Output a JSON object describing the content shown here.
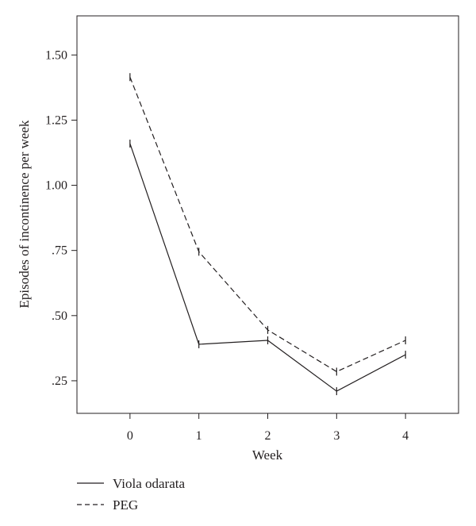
{
  "chart_data": {
    "type": "line",
    "title": "",
    "xlabel": "Week",
    "ylabel": "Episodes of incontinence per week",
    "categories": [
      "0",
      "1",
      "2",
      "3",
      "4"
    ],
    "x": [
      0,
      1,
      2,
      3,
      4
    ],
    "yticks": [
      {
        "value": 0.25,
        "label": ".25"
      },
      {
        "value": 0.5,
        "label": ".50"
      },
      {
        "value": 0.75,
        "label": ".75"
      },
      {
        "value": 1.0,
        "label": "1.00"
      },
      {
        "value": 1.25,
        "label": "1.25"
      },
      {
        "value": 1.5,
        "label": "1.50"
      }
    ],
    "xlim": [
      -0.77,
      4.77
    ],
    "ylim": [
      0.125,
      1.65
    ],
    "grid": false,
    "legend_placement": "bottom-left, below plot",
    "series": [
      {
        "name": "Viola odarata",
        "style": "solid",
        "color": "#231f20",
        "values": [
          1.16,
          0.39,
          0.405,
          0.21,
          0.35
        ]
      },
      {
        "name": "PEG",
        "style": "dashed",
        "color": "#231f20",
        "values": [
          1.415,
          0.745,
          0.445,
          0.285,
          0.405
        ]
      }
    ]
  }
}
